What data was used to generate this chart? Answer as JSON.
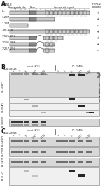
{
  "bg_color": "#ffffff",
  "text_color": "#1a1a1a",
  "panel_bg_light": "#ebebeb",
  "panel_bg_white": "#f8f8f8",
  "band_dark": "#1a1a1a",
  "band_mid": "#555555",
  "band_light": "#999999",
  "band_faint": "#bbbbbb",
  "gray_box": "#888888",
  "light_gray_box": "#cccccc",
  "smear_color": "#888888",
  "constructs": [
    "FL",
    "1-297",
    "1-134",
    "198-450",
    "1/195-297",
    "1/195-268",
    "1/257-297"
  ],
  "herc2_results": [
    "+",
    "+",
    "-",
    "+",
    "+",
    "+",
    "-"
  ],
  "lanes": [
    "L",
    "C",
    "FL",
    "1-297",
    "1-134",
    "L",
    "C",
    "FL",
    "1-297",
    "1-134"
  ],
  "wb_b": [
    "IB: HERC2",
    "IB: FLAG",
    "IB: HSP90"
  ],
  "wb_c": [
    "IB: HERC2",
    "IB: CUL1",
    "IB: SKP1",
    "IB: FLAG"
  ]
}
